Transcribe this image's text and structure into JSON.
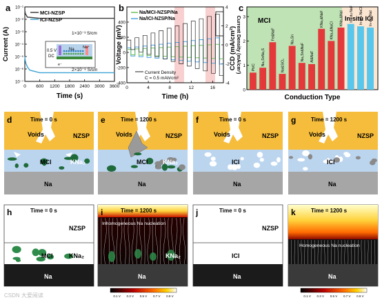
{
  "panels": {
    "a": {
      "letter": "a"
    },
    "b": {
      "letter": "b"
    },
    "c": {
      "letter": "c"
    },
    "d": {
      "letter": "d"
    },
    "e": {
      "letter": "e"
    },
    "f": {
      "letter": "f"
    },
    "g": {
      "letter": "g"
    },
    "h": {
      "letter": "h"
    },
    "i": {
      "letter": "i"
    },
    "j": {
      "letter": "j"
    },
    "k": {
      "letter": "k"
    }
  },
  "chart_data": [
    {
      "panel": "a",
      "type": "line",
      "xlabel": "Time (s)",
      "ylabel": "Current (A)",
      "yscale": "log",
      "xlim": [
        0,
        3600
      ],
      "ylim": [
        1e-07,
        0.1
      ],
      "xticks": [
        "0",
        "600",
        "1200",
        "1800",
        "2400",
        "3000",
        "3600"
      ],
      "yticks": [
        "10⁻⁷",
        "10⁻⁶",
        "10⁻⁵",
        "10⁻⁴",
        "10⁻³",
        "10⁻²",
        "10⁻¹"
      ],
      "series": [
        {
          "name": "MCI-NZSP",
          "color": "#3a3a3a",
          "x": [
            0,
            20,
            100,
            600,
            1200,
            1800,
            2400,
            3000,
            3600
          ],
          "y": [
            0.05,
            0.03,
            0.015,
            0.012,
            0.012,
            0.012,
            0.012,
            0.012,
            0.012
          ]
        },
        {
          "name": "ICI-NZSP",
          "color": "#3fa3d6",
          "x": [
            0,
            10,
            40,
            100,
            200,
            600,
            1200,
            1800,
            2400,
            3000,
            3600
          ],
          "y": [
            1e-05,
            6e-06,
            3e-06,
            1.5e-06,
            8e-07,
            5e-07,
            5e-07,
            5e-07,
            5e-07,
            5e-07,
            5e-07
          ]
        }
      ],
      "annotations": [
        "1×10⁻³ S/cm",
        "2×10⁻⁸ S/cm"
      ],
      "inset": {
        "voltage": "0.5 V",
        "mode": "DC",
        "labels": [
          "Na",
          "Na⁺",
          "e⁻"
        ]
      }
    },
    {
      "panel": "b",
      "type": "line",
      "xlabel": "Time (h)",
      "ylabel": "Voltage (mV)",
      "y2label": "Current Density (mA/cm²)",
      "xlim": [
        0,
        18
      ],
      "ylim": [
        -400,
        600
      ],
      "y2lim": [
        -4,
        4
      ],
      "xticks": [
        "0",
        "4",
        "8",
        "12",
        "16"
      ],
      "yticks": [
        "-400",
        "-200",
        "0",
        "200",
        "400"
      ],
      "y2ticks": [
        "4",
        "2",
        "0",
        "-2",
        "-4"
      ],
      "series": [
        {
          "name": "Na/MCI-NZSP/Na",
          "color": "#6bbf5a"
        },
        {
          "name": "Na/ICI-NZSP/Na",
          "color": "#4aa3e0"
        },
        {
          "name": "Current Density",
          "color": "#222222"
        }
      ],
      "annotation": "C = 0.5 mAh/cm²"
    },
    {
      "panel": "c",
      "type": "bar",
      "xlabel": "Conduction Type",
      "ylabel": "CCD (mA/cm²)",
      "ylim": [
        0,
        3.4
      ],
      "yticks": [
        "0",
        "1",
        "2",
        "3"
      ],
      "groups": [
        "MCI",
        "In-situ ICI"
      ],
      "categories": [
        "Pb/C",
        "Na₃SnNa₂S",
        "Fe&NaF",
        "Na&SiO₂",
        "Na₃Sn",
        "Na₃Sn&NaF",
        "Al&NaF",
        "KNa₂&NaF",
        "KNa₂&NaCl",
        "KNa₂&NaI",
        "In-situ NaF",
        "In-situ NaCl",
        "In-situ NaI"
      ],
      "values": [
        0.7,
        0.9,
        1.95,
        0.65,
        1.8,
        1.1,
        1.05,
        2.5,
        2.0,
        2.55,
        2.7,
        2.6,
        2.55
      ],
      "colors": [
        "#e4393b",
        "#e4393b",
        "#e4393b",
        "#e4393b",
        "#e4393b",
        "#e4393b",
        "#e4393b",
        "#e4393b",
        "#e4393b",
        "#e4393b",
        "#59c6ec",
        "#59c6ec",
        "#59c6ec"
      ]
    }
  ],
  "schematics": {
    "time_0": "Time = 0 s",
    "time_1200": "Time = 1200 s",
    "voids": "Voids",
    "nzsp": "NZSP",
    "na": "Na",
    "mci": "MCI",
    "kna2": "KNa₂",
    "ici": "ICI"
  },
  "simulations": {
    "inhomogeneous": "Inhomogeneous Na nucleation",
    "homogeneous": "Homogeneous Na nucleation",
    "colorbar_ticks": [
      "0.1 V",
      "0.3 V",
      "0.5 V",
      "0.7 V",
      "0.9 V"
    ]
  },
  "watermark": "CSDN 大爱阅读"
}
